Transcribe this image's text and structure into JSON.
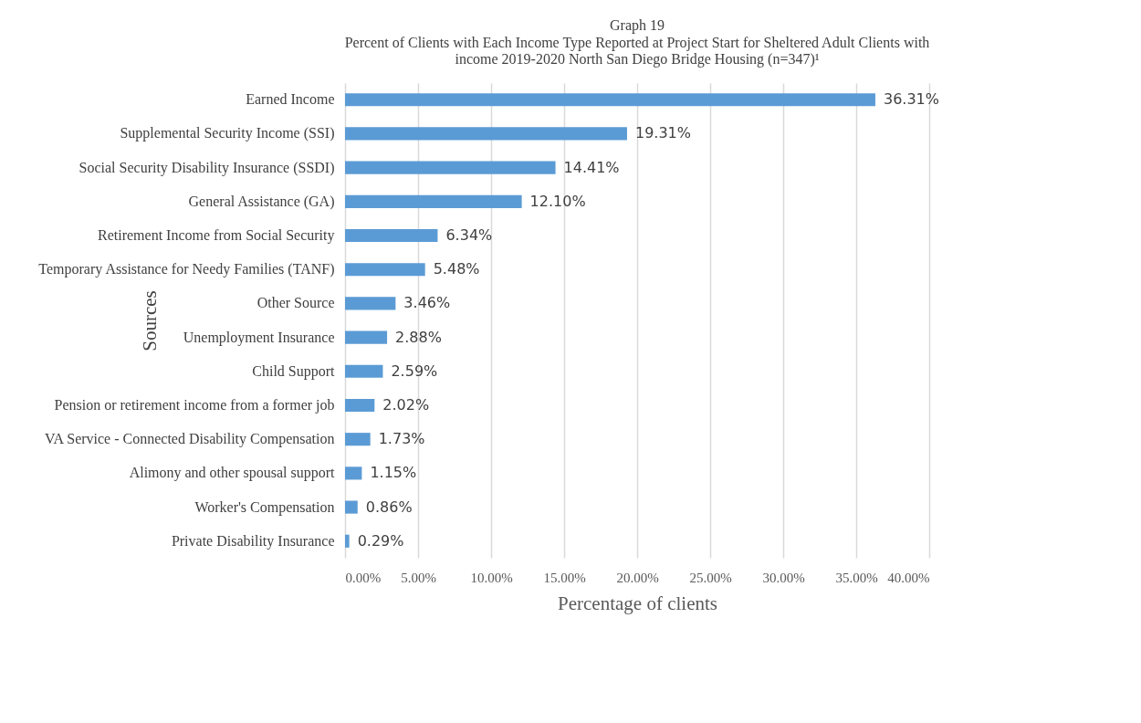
{
  "chart_data": {
    "type": "bar",
    "orientation": "horizontal",
    "title": "Graph 19",
    "subtitle": "Percent of Clients with Each Income Type Reported at Project Start for Sheltered Adult Clients with income 2019-2020 North San Diego Bridge Housing  (n=347)¹",
    "xlabel": "Percentage of clients",
    "ylabel": "Sources",
    "categories": [
      "Earned Income",
      "Supplemental Security Income (SSI)",
      "Social Security Disability Insurance (SSDI)",
      "General Assistance (GA)",
      "Retirement Income from Social Security",
      "Temporary Assistance for Needy Families (TANF)",
      "Other Source",
      "Unemployment Insurance",
      "Child Support",
      "Pension or retirement income from a former job",
      "VA Service - Connected Disability Compensation",
      "Alimony and other spousal support",
      "Worker's Compensation",
      "Private Disability Insurance"
    ],
    "values": [
      36.31,
      19.31,
      14.41,
      12.1,
      6.34,
      5.48,
      3.46,
      2.88,
      2.59,
      2.02,
      1.73,
      1.15,
      0.86,
      0.29
    ],
    "value_labels": [
      "36.31%",
      "19.31%",
      "14.41%",
      "12.10%",
      "6.34%",
      "5.48%",
      "3.46%",
      "2.88%",
      "2.59%",
      "2.02%",
      "1.73%",
      "1.15%",
      "0.86%",
      "0.29%"
    ],
    "color": "#5b9bd5",
    "xlim": [
      0,
      40
    ],
    "xticks": [
      {
        "value": 0,
        "label": "0.00%"
      },
      {
        "value": 5,
        "label": "5.00%"
      },
      {
        "value": 10,
        "label": "10.00%"
      },
      {
        "value": 15,
        "label": "15.00%"
      },
      {
        "value": 20,
        "label": "20.00%"
      },
      {
        "value": 25,
        "label": "25.00%"
      },
      {
        "value": 30,
        "label": "30.00%"
      },
      {
        "value": 35,
        "label": "35.00%"
      },
      {
        "value": 40,
        "label": "40.00%"
      }
    ],
    "grid": "x"
  }
}
